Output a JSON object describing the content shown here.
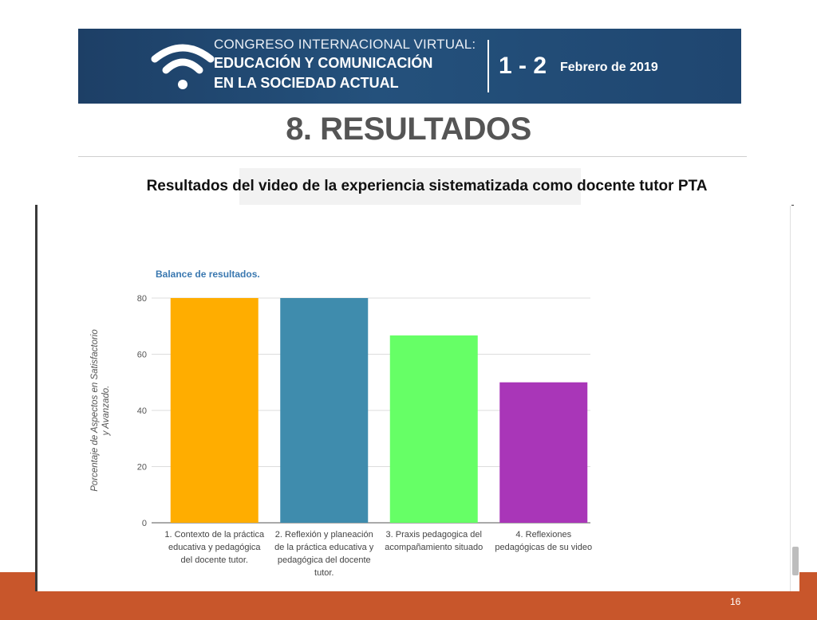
{
  "banner": {
    "line1": "CONGRESO INTERNACIONAL VIRTUAL:",
    "line2": "EDUCACIÓN Y COMUNICACIÓN",
    "line3": "EN LA SOCIEDAD ACTUAL",
    "dates": "1 - 2",
    "month": "Febrero de 2019",
    "logo_icon": "wifi-icon"
  },
  "slide": {
    "title": "8. RESULTADOS",
    "subtitle": "Resultados del video de la experiencia sistematizada como docente tutor PTA",
    "page_number": "16"
  },
  "colors": {
    "accent_bar": "#c8562b",
    "banner_bg": "#1f4670",
    "chart_title": "#3a78b0"
  },
  "chart_data": {
    "type": "bar",
    "title": "Balance de resultados.",
    "xlabel": "",
    "ylabel": "Porcentaje de Aspectos en Satisfactorio y Avanzado.",
    "ylim": [
      0,
      80
    ],
    "yticks": [
      0,
      20,
      40,
      60,
      80
    ],
    "grid": true,
    "categories": [
      [
        "1. Contexto de la práctica",
        "educativa y pedagógica",
        "del docente tutor."
      ],
      [
        "2. Reflexión y planeación",
        "de la práctica educativa y",
        "pedagógica del docente",
        "tutor."
      ],
      [
        "3. Praxis pedagogica del",
        "acompañamiento situado"
      ],
      [
        "4. Reflexiones",
        "pedagógicas de su video"
      ]
    ],
    "values": [
      80,
      80,
      66.7,
      50
    ],
    "colors": [
      "#ffad00",
      "#3f8cad",
      "#66ff66",
      "#a936b8"
    ]
  }
}
